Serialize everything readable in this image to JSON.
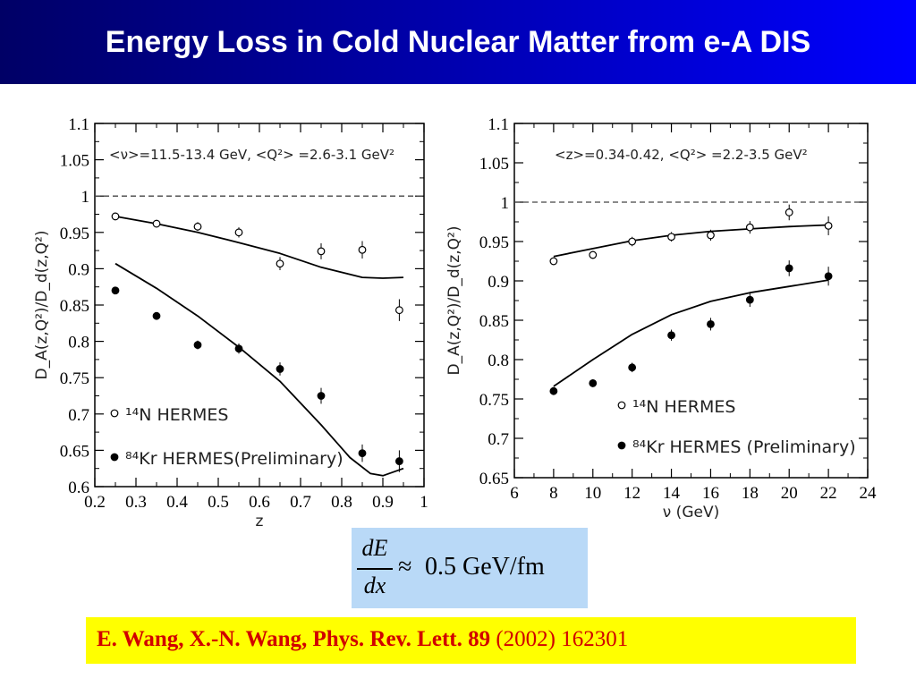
{
  "slide": {
    "title": "Energy Loss in Cold Nuclear Matter from e-A DIS"
  },
  "formula": {
    "numerator": "dE",
    "denominator": "dx",
    "approx": "≈",
    "rhs": "0.5 GeV/fm"
  },
  "reference": {
    "authors_journal": "E. Wang, X.-N. Wang, Phys. Rev. Lett.",
    "volume": "89",
    "year_page": "(2002) 162301"
  },
  "colors": {
    "title_bg_left": "#000066",
    "title_bg_right": "#0000ff",
    "formula_bg": "#b9d9f7",
    "reference_bg": "#ffff00",
    "reference_text": "#d10000"
  },
  "chart_data": [
    {
      "type": "scatter",
      "title": "<ν>=11.5-13.4 GeV,  <Q²> =2.6-3.1 GeV²",
      "xlabel": "z",
      "ylabel": "D_A(z,Q²)/D_d(z,Q²)",
      "xlim": [
        0.2,
        1.0
      ],
      "ylim": [
        0.6,
        1.1
      ],
      "xticks": [
        "0.2",
        "0.3",
        "0.4",
        "0.5",
        "0.6",
        "0.7",
        "0.8",
        "0.9",
        "1"
      ],
      "yticks": [
        "0.6",
        "0.65",
        "0.7",
        "0.75",
        "0.8",
        "0.85",
        "0.9",
        "0.95",
        "1",
        "1.05",
        "1.1"
      ],
      "reference_line": 1.0,
      "series": [
        {
          "name": "¹⁴N HERMES",
          "marker": "open-circle",
          "x": [
            0.25,
            0.35,
            0.45,
            0.55,
            0.65,
            0.75,
            0.85,
            0.94
          ],
          "y": [
            0.972,
            0.962,
            0.958,
            0.95,
            0.907,
            0.924,
            0.926,
            0.843
          ],
          "err": [
            0.005,
            0.005,
            0.006,
            0.007,
            0.009,
            0.011,
            0.012,
            0.015
          ]
        },
        {
          "name": "⁸⁴Kr HERMES(Preliminary)",
          "marker": "filled-circle",
          "x": [
            0.25,
            0.35,
            0.45,
            0.55,
            0.65,
            0.75,
            0.85,
            0.94
          ],
          "y": [
            0.87,
            0.835,
            0.795,
            0.79,
            0.762,
            0.725,
            0.646,
            0.635
          ],
          "err": [
            0.005,
            0.005,
            0.006,
            0.007,
            0.009,
            0.011,
            0.012,
            0.015
          ]
        }
      ],
      "curves": [
        {
          "x": [
            0.25,
            0.35,
            0.45,
            0.55,
            0.65,
            0.75,
            0.85,
            0.9,
            0.95
          ],
          "y": [
            0.972,
            0.962,
            0.95,
            0.936,
            0.921,
            0.902,
            0.888,
            0.887,
            0.888
          ]
        },
        {
          "x": [
            0.25,
            0.35,
            0.45,
            0.55,
            0.65,
            0.75,
            0.82,
            0.87,
            0.9,
            0.95
          ],
          "y": [
            0.907,
            0.873,
            0.835,
            0.792,
            0.745,
            0.685,
            0.64,
            0.618,
            0.615,
            0.625
          ]
        }
      ]
    },
    {
      "type": "scatter",
      "title": "<z>=0.34-0.42,  <Q²> =2.2-3.5 GeV²",
      "xlabel": "ν (GeV)",
      "ylabel": "D_A(z,Q²)/D_d(z,Q²)",
      "xlim": [
        6,
        24
      ],
      "ylim": [
        0.65,
        1.1
      ],
      "xticks": [
        "6",
        "8",
        "10",
        "12",
        "14",
        "16",
        "18",
        "20",
        "22",
        "24"
      ],
      "yticks": [
        "0.65",
        "0.7",
        "0.75",
        "0.8",
        "0.85",
        "0.9",
        "0.95",
        "1",
        "1.05",
        "1.1"
      ],
      "reference_line": 1.0,
      "series": [
        {
          "name": "¹⁴N HERMES",
          "marker": "open-circle",
          "x": [
            8,
            10,
            12,
            14,
            16,
            18,
            20,
            22
          ],
          "y": [
            0.925,
            0.933,
            0.95,
            0.956,
            0.958,
            0.968,
            0.987,
            0.97
          ],
          "err": [
            0.005,
            0.005,
            0.006,
            0.006,
            0.007,
            0.008,
            0.01,
            0.012
          ]
        },
        {
          "name": "⁸⁴Kr HERMES (Preliminary)",
          "marker": "filled-circle",
          "x": [
            8,
            10,
            12,
            14,
            16,
            18,
            20,
            22
          ],
          "y": [
            0.76,
            0.77,
            0.79,
            0.831,
            0.845,
            0.876,
            0.916,
            0.906
          ],
          "err": [
            0.005,
            0.005,
            0.006,
            0.007,
            0.008,
            0.009,
            0.01,
            0.012
          ]
        }
      ],
      "curves": [
        {
          "x": [
            8,
            10,
            12,
            14,
            16,
            18,
            20,
            22
          ],
          "y": [
            0.931,
            0.941,
            0.951,
            0.958,
            0.963,
            0.966,
            0.969,
            0.971
          ]
        },
        {
          "x": [
            8,
            10,
            12,
            14,
            16,
            18,
            20,
            22
          ],
          "y": [
            0.766,
            0.8,
            0.832,
            0.857,
            0.874,
            0.885,
            0.893,
            0.901
          ]
        }
      ]
    }
  ]
}
